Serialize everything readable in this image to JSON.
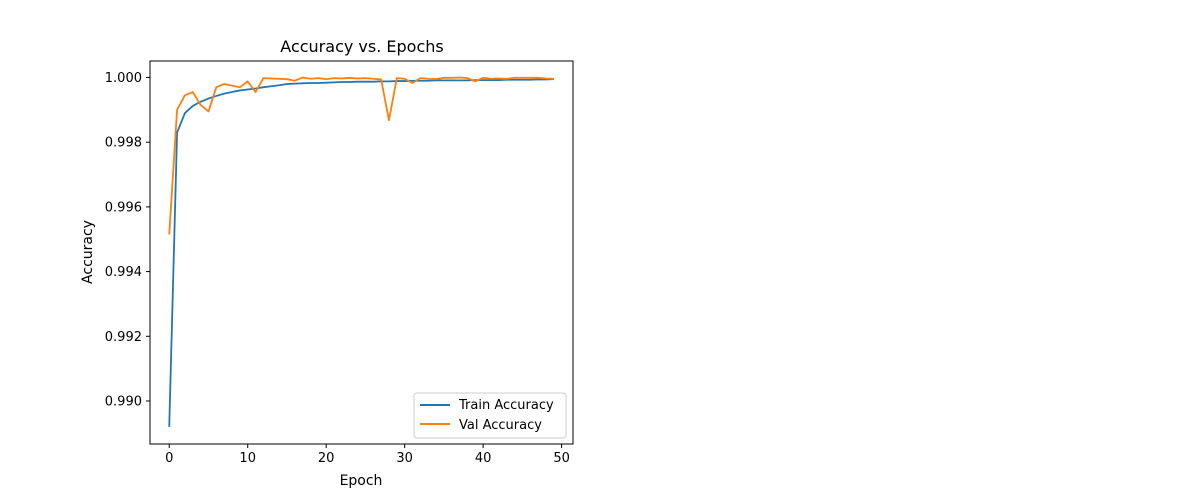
{
  "chart_data": {
    "type": "line",
    "title": "Accuracy vs. Epochs",
    "xlabel": "Epoch",
    "ylabel": "Accuracy",
    "xlim": [
      -2.45,
      51.45
    ],
    "ylim": [
      0.98867,
      1.00051
    ],
    "xticks": [
      0,
      10,
      20,
      30,
      40,
      50
    ],
    "xtick_labels": [
      "0",
      "10",
      "20",
      "30",
      "40",
      "50"
    ],
    "yticks": [
      0.99,
      0.992,
      0.994,
      0.996,
      0.998,
      1.0
    ],
    "ytick_labels": [
      "0.990",
      "0.992",
      "0.994",
      "0.996",
      "0.998",
      "1.000"
    ],
    "grid": false,
    "legend_position": "lower-right",
    "x": [
      0,
      1,
      2,
      3,
      4,
      5,
      6,
      7,
      8,
      9,
      10,
      11,
      12,
      13,
      14,
      15,
      16,
      17,
      18,
      19,
      20,
      21,
      22,
      23,
      24,
      25,
      26,
      27,
      28,
      29,
      30,
      31,
      32,
      33,
      34,
      35,
      36,
      37,
      38,
      39,
      40,
      41,
      42,
      43,
      44,
      45,
      46,
      47,
      48,
      49
    ],
    "series": [
      {
        "name": "Train Accuracy",
        "color": "#1f77b4",
        "values": [
          0.9892,
          0.9983,
          0.9989,
          0.99912,
          0.99925,
          0.99935,
          0.99943,
          0.9995,
          0.99955,
          0.9996,
          0.99963,
          0.99966,
          0.9997,
          0.99973,
          0.99976,
          0.9998,
          0.99981,
          0.99982,
          0.99983,
          0.99983,
          0.99984,
          0.99985,
          0.99986,
          0.99986,
          0.99987,
          0.99987,
          0.99987,
          0.99988,
          0.99988,
          0.99989,
          0.99989,
          0.9999,
          0.9999,
          0.9999,
          0.99991,
          0.99991,
          0.99991,
          0.99991,
          0.99991,
          0.99992,
          0.99992,
          0.99992,
          0.99992,
          0.99993,
          0.99993,
          0.99993,
          0.99993,
          0.99994,
          0.99994,
          0.99995
        ]
      },
      {
        "name": "Val Accuracy",
        "color": "#ff7f0e",
        "values": [
          0.99515,
          0.999,
          0.99945,
          0.99955,
          0.99915,
          0.99895,
          0.9997,
          0.9998,
          0.99975,
          0.9997,
          0.99988,
          0.99955,
          0.99998,
          0.99997,
          0.99996,
          0.99995,
          0.9999,
          1.0,
          0.99996,
          0.99998,
          0.99995,
          0.99998,
          0.99997,
          0.99999,
          0.99997,
          0.99998,
          0.99996,
          0.99994,
          0.99868,
          0.99998,
          0.99996,
          0.99983,
          0.99998,
          0.99996,
          0.99995,
          0.99999,
          0.99999,
          1.0,
          0.99998,
          0.99988,
          0.99999,
          0.99996,
          0.99997,
          0.99996,
          0.99999,
          0.99999,
          0.99999,
          0.99999,
          0.99997,
          0.99996
        ]
      }
    ]
  }
}
